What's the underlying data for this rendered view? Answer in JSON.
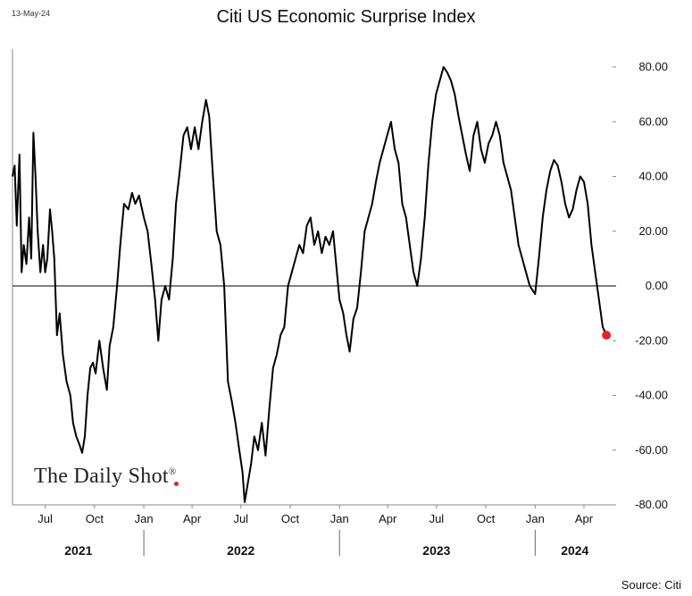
{
  "header": {
    "date": "13-May-24",
    "title": "Citi US Economic Surprise Index"
  },
  "footer": {
    "source": "Source: Citi"
  },
  "branding": {
    "text": "The Daily Shot",
    "mark": "®"
  },
  "colors": {
    "line": "#000000",
    "last_point": "#e8232a",
    "zero_line": "#333333"
  },
  "chart_data": {
    "type": "line",
    "title": "Citi US Economic Surprise Index",
    "xlabel": "",
    "ylabel": "",
    "ylim": [
      -80,
      80
    ],
    "yticks": [
      80,
      60,
      40,
      20,
      0,
      -20,
      -40,
      -60,
      -80
    ],
    "ytick_labels": [
      "80.00",
      "60.00",
      "40.00",
      "20.00",
      "0.00",
      "-20.00",
      "-40.00",
      "-60.00",
      "-80.00"
    ],
    "y_axis_side": "right",
    "xlim": [
      "2021-05-01",
      "2024-05-31"
    ],
    "x_month_ticks": [
      {
        "date": "2021-07-01",
        "label": "Jul"
      },
      {
        "date": "2021-10-01",
        "label": "Oct"
      },
      {
        "date": "2022-01-01",
        "label": "Jan"
      },
      {
        "date": "2022-04-01",
        "label": "Apr"
      },
      {
        "date": "2022-07-01",
        "label": "Jul"
      },
      {
        "date": "2022-10-01",
        "label": "Oct"
      },
      {
        "date": "2023-01-01",
        "label": "Jan"
      },
      {
        "date": "2023-04-01",
        "label": "Apr"
      },
      {
        "date": "2023-07-01",
        "label": "Jul"
      },
      {
        "date": "2023-10-01",
        "label": "Oct"
      },
      {
        "date": "2024-01-01",
        "label": "Jan"
      },
      {
        "date": "2024-04-01",
        "label": "Apr"
      }
    ],
    "x_year_labels": [
      {
        "label": "2021",
        "date": "2021-09-01"
      },
      {
        "label": "2022",
        "date": "2022-07-01"
      },
      {
        "label": "2023",
        "date": "2023-07-01"
      },
      {
        "label": "2024",
        "date": "2024-03-15"
      }
    ],
    "year_separators": [
      "2022-01-01",
      "2023-01-01",
      "2024-01-01"
    ],
    "zero_line": true,
    "grid": false,
    "series": [
      {
        "points": [
          [
            "2021-05-01",
            40
          ],
          [
            "2021-05-05",
            44
          ],
          [
            "2021-05-09",
            22
          ],
          [
            "2021-05-14",
            48
          ],
          [
            "2021-05-18",
            5
          ],
          [
            "2021-05-22",
            15
          ],
          [
            "2021-05-27",
            8
          ],
          [
            "2021-06-01",
            25
          ],
          [
            "2021-06-05",
            10
          ],
          [
            "2021-06-09",
            56
          ],
          [
            "2021-06-13",
            40
          ],
          [
            "2021-06-17",
            20
          ],
          [
            "2021-06-22",
            5
          ],
          [
            "2021-06-27",
            15
          ],
          [
            "2021-07-01",
            5
          ],
          [
            "2021-07-05",
            10
          ],
          [
            "2021-07-10",
            28
          ],
          [
            "2021-07-14",
            20
          ],
          [
            "2021-07-18",
            10
          ],
          [
            "2021-07-23",
            -18
          ],
          [
            "2021-07-28",
            -10
          ],
          [
            "2021-08-03",
            -25
          ],
          [
            "2021-08-10",
            -35
          ],
          [
            "2021-08-17",
            -40
          ],
          [
            "2021-08-22",
            -50
          ],
          [
            "2021-08-28",
            -55
          ],
          [
            "2021-09-03",
            -58
          ],
          [
            "2021-09-08",
            -61
          ],
          [
            "2021-09-13",
            -55
          ],
          [
            "2021-09-18",
            -40
          ],
          [
            "2021-09-23",
            -30
          ],
          [
            "2021-09-28",
            -28
          ],
          [
            "2021-10-03",
            -32
          ],
          [
            "2021-10-10",
            -20
          ],
          [
            "2021-10-17",
            -30
          ],
          [
            "2021-10-24",
            -38
          ],
          [
            "2021-10-29",
            -22
          ],
          [
            "2021-11-05",
            -15
          ],
          [
            "2021-11-12",
            0
          ],
          [
            "2021-11-18",
            15
          ],
          [
            "2021-11-25",
            30
          ],
          [
            "2021-12-03",
            28
          ],
          [
            "2021-12-10",
            34
          ],
          [
            "2021-12-16",
            30
          ],
          [
            "2021-12-23",
            33
          ],
          [
            "2022-01-01",
            25
          ],
          [
            "2022-01-08",
            20
          ],
          [
            "2022-01-15",
            8
          ],
          [
            "2022-01-22",
            -5
          ],
          [
            "2022-01-28",
            -20
          ],
          [
            "2022-02-03",
            -5
          ],
          [
            "2022-02-10",
            0
          ],
          [
            "2022-02-17",
            -5
          ],
          [
            "2022-02-24",
            10
          ],
          [
            "2022-03-02",
            30
          ],
          [
            "2022-03-09",
            42
          ],
          [
            "2022-03-16",
            55
          ],
          [
            "2022-03-23",
            58
          ],
          [
            "2022-03-30",
            50
          ],
          [
            "2022-04-06",
            58
          ],
          [
            "2022-04-13",
            50
          ],
          [
            "2022-04-20",
            60
          ],
          [
            "2022-04-27",
            68
          ],
          [
            "2022-05-03",
            62
          ],
          [
            "2022-05-10",
            40
          ],
          [
            "2022-05-17",
            20
          ],
          [
            "2022-05-24",
            15
          ],
          [
            "2022-05-31",
            0
          ],
          [
            "2022-06-07",
            -35
          ],
          [
            "2022-06-14",
            -42
          ],
          [
            "2022-06-21",
            -50
          ],
          [
            "2022-06-28",
            -60
          ],
          [
            "2022-07-04",
            -68
          ],
          [
            "2022-07-08",
            -79
          ],
          [
            "2022-07-14",
            -72
          ],
          [
            "2022-07-20",
            -65
          ],
          [
            "2022-07-26",
            -55
          ],
          [
            "2022-08-02",
            -60
          ],
          [
            "2022-08-09",
            -50
          ],
          [
            "2022-08-16",
            -62
          ],
          [
            "2022-08-23",
            -45
          ],
          [
            "2022-08-30",
            -30
          ],
          [
            "2022-09-06",
            -25
          ],
          [
            "2022-09-13",
            -18
          ],
          [
            "2022-09-20",
            -15
          ],
          [
            "2022-09-27",
            0
          ],
          [
            "2022-10-04",
            5
          ],
          [
            "2022-10-11",
            10
          ],
          [
            "2022-10-18",
            15
          ],
          [
            "2022-10-25",
            12
          ],
          [
            "2022-11-01",
            22
          ],
          [
            "2022-11-08",
            25
          ],
          [
            "2022-11-15",
            15
          ],
          [
            "2022-11-22",
            20
          ],
          [
            "2022-11-29",
            12
          ],
          [
            "2022-12-06",
            18
          ],
          [
            "2022-12-13",
            15
          ],
          [
            "2022-12-20",
            20
          ],
          [
            "2023-01-01",
            -5
          ],
          [
            "2023-01-08",
            -10
          ],
          [
            "2023-01-14",
            -18
          ],
          [
            "2023-01-20",
            -24
          ],
          [
            "2023-01-27",
            -12
          ],
          [
            "2023-02-03",
            -8
          ],
          [
            "2023-02-10",
            5
          ],
          [
            "2023-02-17",
            20
          ],
          [
            "2023-02-24",
            25
          ],
          [
            "2023-03-03",
            30
          ],
          [
            "2023-03-10",
            38
          ],
          [
            "2023-03-17",
            45
          ],
          [
            "2023-03-24",
            50
          ],
          [
            "2023-03-31",
            55
          ],
          [
            "2023-04-07",
            60
          ],
          [
            "2023-04-14",
            50
          ],
          [
            "2023-04-21",
            45
          ],
          [
            "2023-04-28",
            30
          ],
          [
            "2023-05-05",
            25
          ],
          [
            "2023-05-12",
            15
          ],
          [
            "2023-05-19",
            5
          ],
          [
            "2023-05-26",
            0
          ],
          [
            "2023-06-02",
            10
          ],
          [
            "2023-06-09",
            25
          ],
          [
            "2023-06-16",
            45
          ],
          [
            "2023-06-23",
            60
          ],
          [
            "2023-06-30",
            70
          ],
          [
            "2023-07-07",
            75
          ],
          [
            "2023-07-14",
            80
          ],
          [
            "2023-07-21",
            78
          ],
          [
            "2023-07-28",
            75
          ],
          [
            "2023-08-04",
            70
          ],
          [
            "2023-08-11",
            62
          ],
          [
            "2023-08-18",
            55
          ],
          [
            "2023-08-25",
            48
          ],
          [
            "2023-09-01",
            42
          ],
          [
            "2023-09-08",
            55
          ],
          [
            "2023-09-15",
            60
          ],
          [
            "2023-09-22",
            50
          ],
          [
            "2023-09-29",
            45
          ],
          [
            "2023-10-06",
            52
          ],
          [
            "2023-10-13",
            55
          ],
          [
            "2023-10-20",
            60
          ],
          [
            "2023-10-27",
            55
          ],
          [
            "2023-11-03",
            45
          ],
          [
            "2023-11-10",
            40
          ],
          [
            "2023-11-17",
            35
          ],
          [
            "2023-11-24",
            25
          ],
          [
            "2023-12-01",
            15
          ],
          [
            "2023-12-08",
            10
          ],
          [
            "2023-12-15",
            5
          ],
          [
            "2023-12-22",
            0
          ],
          [
            "2024-01-01",
            -3
          ],
          [
            "2024-01-08",
            10
          ],
          [
            "2024-01-15",
            25
          ],
          [
            "2024-01-22",
            35
          ],
          [
            "2024-01-29",
            42
          ],
          [
            "2024-02-05",
            46
          ],
          [
            "2024-02-12",
            44
          ],
          [
            "2024-02-19",
            38
          ],
          [
            "2024-02-26",
            30
          ],
          [
            "2024-03-04",
            25
          ],
          [
            "2024-03-11",
            28
          ],
          [
            "2024-03-18",
            35
          ],
          [
            "2024-03-25",
            40
          ],
          [
            "2024-04-01",
            38
          ],
          [
            "2024-04-08",
            30
          ],
          [
            "2024-04-15",
            15
          ],
          [
            "2024-04-22",
            5
          ],
          [
            "2024-04-29",
            -5
          ],
          [
            "2024-05-06",
            -15
          ],
          [
            "2024-05-13",
            -18
          ]
        ]
      }
    ],
    "last_value": {
      "date": "2024-05-13",
      "value": -18
    }
  }
}
